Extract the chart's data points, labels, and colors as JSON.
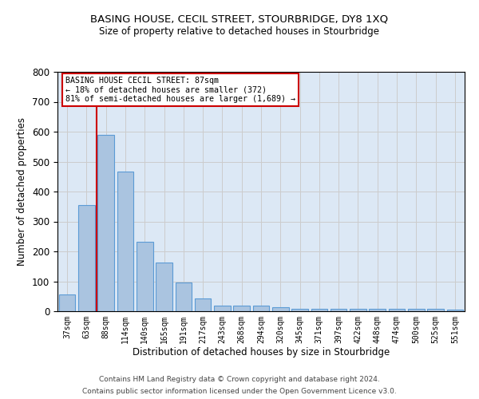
{
  "title": "BASING HOUSE, CECIL STREET, STOURBRIDGE, DY8 1XQ",
  "subtitle": "Size of property relative to detached houses in Stourbridge",
  "xlabel": "Distribution of detached houses by size in Stourbridge",
  "ylabel": "Number of detached properties",
  "bar_labels": [
    "37sqm",
    "63sqm",
    "88sqm",
    "114sqm",
    "140sqm",
    "165sqm",
    "191sqm",
    "217sqm",
    "243sqm",
    "268sqm",
    "294sqm",
    "320sqm",
    "345sqm",
    "371sqm",
    "397sqm",
    "422sqm",
    "448sqm",
    "474sqm",
    "500sqm",
    "525sqm",
    "551sqm"
  ],
  "bar_values": [
    55,
    355,
    590,
    468,
    233,
    163,
    95,
    44,
    20,
    20,
    20,
    14,
    8,
    8,
    8,
    8,
    8,
    8,
    8,
    8,
    5
  ],
  "bar_color": "#aac4e0",
  "bar_edge_color": "#5b9bd5",
  "highlight_bar_index": 2,
  "highlight_line_color": "#cc0000",
  "annotation_line1": "BASING HOUSE CECIL STREET: 87sqm",
  "annotation_line2": "← 18% of detached houses are smaller (372)",
  "annotation_line3": "81% of semi-detached houses are larger (1,689) →",
  "annotation_box_color": "#cc0000",
  "ylim": [
    0,
    800
  ],
  "yticks": [
    0,
    100,
    200,
    300,
    400,
    500,
    600,
    700,
    800
  ],
  "grid_color": "#cccccc",
  "background_color": "#dce8f5",
  "footer_line1": "Contains HM Land Registry data © Crown copyright and database right 2024.",
  "footer_line2": "Contains public sector information licensed under the Open Government Licence v3.0."
}
